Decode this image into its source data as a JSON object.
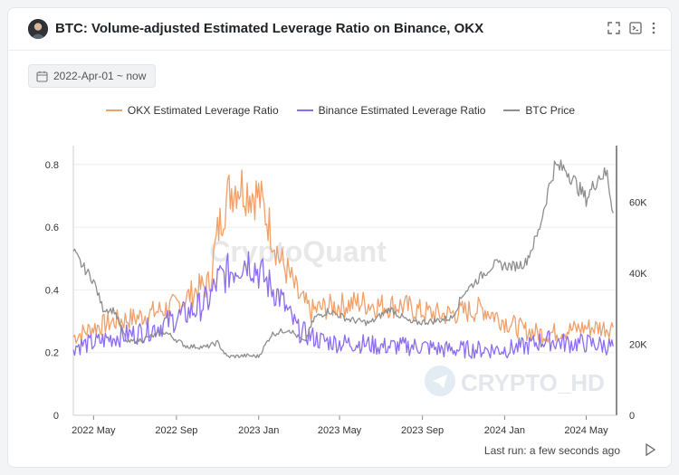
{
  "header": {
    "title": "BTC: Volume-adjusted Estimated Leverage Ratio on Binance, OKX",
    "icons": [
      "fullscreen-icon",
      "console-icon",
      "more-vertical-icon"
    ]
  },
  "filter": {
    "date_range": "2022-Apr-01 ~ now"
  },
  "footer": {
    "last_run": "Last run: a few seconds ago"
  },
  "watermarks": {
    "center": "CryptoQuant",
    "corner": "CRYPTO_HD"
  },
  "colors": {
    "okx": "#f0a06a",
    "binance": "#8c6cf0",
    "btc": "#8e8e8e",
    "grid": "#eeeeee"
  },
  "chart_data": {
    "type": "line",
    "title": "",
    "legend_position": "top",
    "x_tick_labels": [
      "2022 May",
      "2022 Sep",
      "2023 Jan",
      "2023 May",
      "2023 Sep",
      "2024 Jan",
      "2024 May"
    ],
    "x_range": [
      "2022-04-01",
      "2024-06-15"
    ],
    "y_left": {
      "ticks": [
        "0",
        "0.2",
        "0.4",
        "0.6",
        "0.8"
      ],
      "range": [
        0,
        0.86
      ]
    },
    "y_right": {
      "ticks": [
        "0",
        "20K",
        "40K",
        "60K"
      ],
      "range": [
        0,
        76000
      ]
    },
    "grid": true,
    "series": [
      {
        "name": "OKX Estimated Leverage Ratio",
        "axis": "left",
        "x": [
          "2022-04-01",
          "2022-05-01",
          "2022-06-01",
          "2022-07-01",
          "2022-08-01",
          "2022-09-01",
          "2022-10-01",
          "2022-10-20",
          "2022-11-01",
          "2022-11-10",
          "2022-11-20",
          "2022-12-01",
          "2022-12-15",
          "2023-01-01",
          "2023-01-15",
          "2023-02-01",
          "2023-02-15",
          "2023-03-01",
          "2023-03-20",
          "2023-04-01",
          "2023-05-01",
          "2023-06-01",
          "2023-07-01",
          "2023-08-01",
          "2023-09-01",
          "2023-10-01",
          "2023-11-01",
          "2023-12-01",
          "2024-01-01",
          "2024-02-01",
          "2024-03-01",
          "2024-04-01",
          "2024-05-01",
          "2024-06-10"
        ],
        "values": [
          0.25,
          0.28,
          0.3,
          0.31,
          0.33,
          0.35,
          0.4,
          0.42,
          0.58,
          0.66,
          0.72,
          0.74,
          0.72,
          0.7,
          0.62,
          0.5,
          0.45,
          0.38,
          0.33,
          0.34,
          0.35,
          0.36,
          0.35,
          0.35,
          0.33,
          0.32,
          0.33,
          0.34,
          0.3,
          0.27,
          0.26,
          0.27,
          0.28,
          0.28
        ]
      },
      {
        "name": "Binance Estimated Leverage Ratio",
        "axis": "left",
        "x": [
          "2022-04-01",
          "2022-05-01",
          "2022-06-01",
          "2022-07-01",
          "2022-08-01",
          "2022-09-01",
          "2022-10-01",
          "2022-10-20",
          "2022-11-01",
          "2022-11-20",
          "2022-12-01",
          "2022-12-15",
          "2023-01-01",
          "2023-01-15",
          "2023-02-01",
          "2023-02-15",
          "2023-03-01",
          "2023-04-01",
          "2023-05-01",
          "2023-06-01",
          "2023-07-01",
          "2023-08-01",
          "2023-09-01",
          "2023-10-01",
          "2023-11-01",
          "2023-12-01",
          "2024-01-01",
          "2024-02-01",
          "2024-03-01",
          "2024-04-01",
          "2024-05-01",
          "2024-06-10"
        ],
        "values": [
          0.22,
          0.23,
          0.25,
          0.26,
          0.28,
          0.31,
          0.34,
          0.37,
          0.43,
          0.46,
          0.48,
          0.5,
          0.46,
          0.42,
          0.38,
          0.32,
          0.27,
          0.24,
          0.23,
          0.23,
          0.22,
          0.22,
          0.22,
          0.21,
          0.21,
          0.21,
          0.21,
          0.22,
          0.24,
          0.23,
          0.23,
          0.22
        ]
      },
      {
        "name": "BTC Price",
        "axis": "right",
        "x": [
          "2022-04-01",
          "2022-04-15",
          "2022-05-01",
          "2022-05-15",
          "2022-06-01",
          "2022-06-20",
          "2022-07-15",
          "2022-08-15",
          "2022-09-15",
          "2022-10-15",
          "2022-11-01",
          "2022-11-15",
          "2022-12-15",
          "2023-01-01",
          "2023-01-20",
          "2023-02-15",
          "2023-03-10",
          "2023-03-25",
          "2023-04-15",
          "2023-05-15",
          "2023-06-15",
          "2023-07-15",
          "2023-08-15",
          "2023-09-15",
          "2023-10-15",
          "2023-11-01",
          "2023-11-15",
          "2023-12-15",
          "2024-01-15",
          "2024-02-01",
          "2024-02-20",
          "2024-03-05",
          "2024-03-15",
          "2024-04-01",
          "2024-04-20",
          "2024-05-01",
          "2024-05-20",
          "2024-06-01",
          "2024-06-10"
        ],
        "values": [
          46000,
          42000,
          38000,
          30000,
          29500,
          20500,
          21500,
          23500,
          19500,
          19200,
          20500,
          16500,
          16800,
          16600,
          22800,
          24300,
          20500,
          27500,
          29500,
          27000,
          26000,
          30000,
          26000,
          26500,
          27500,
          34500,
          37000,
          42500,
          42000,
          43000,
          51500,
          63000,
          70000,
          69500,
          64000,
          61000,
          67500,
          68000,
          57000
        ]
      }
    ]
  }
}
